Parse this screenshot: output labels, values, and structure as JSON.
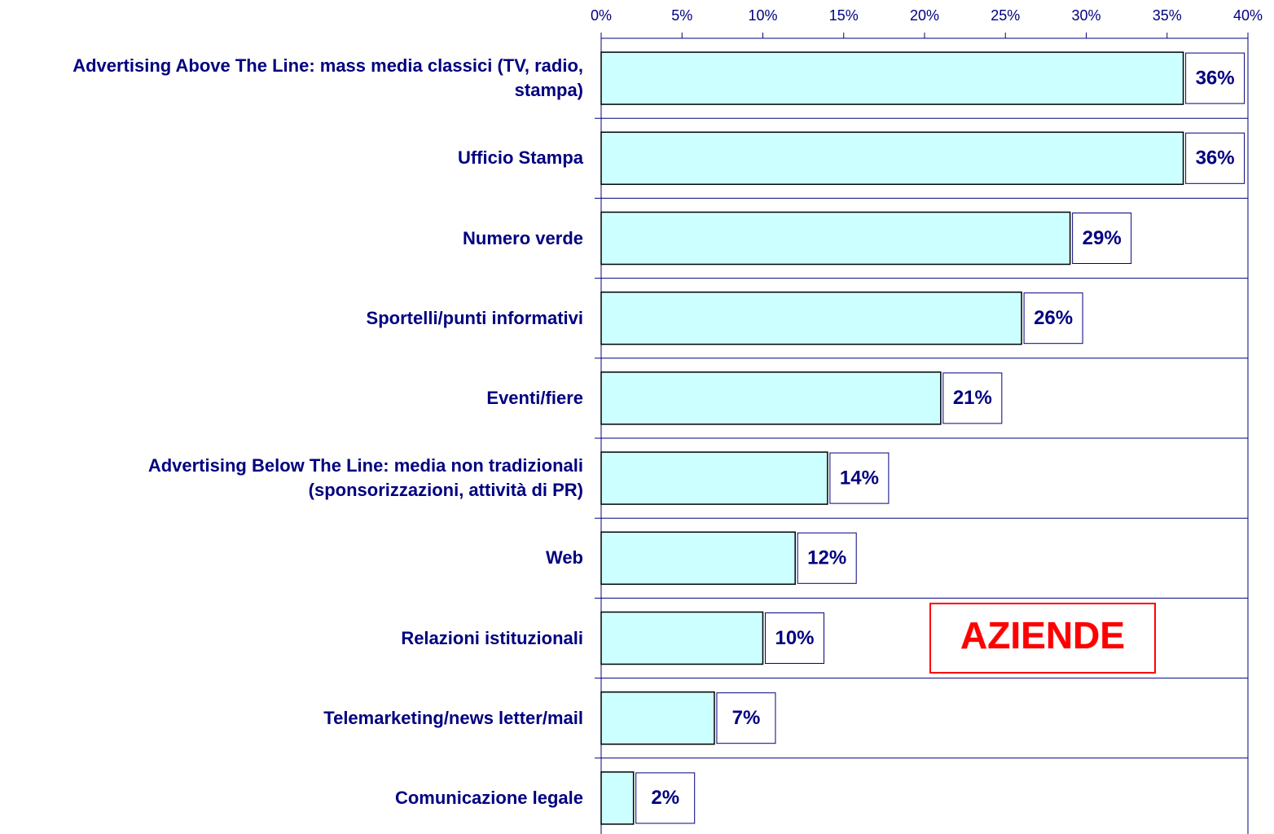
{
  "chart_data": {
    "type": "hbar",
    "categories": [
      "Advertising Above The Line: mass media classici (TV, radio, stampa)",
      "Ufficio Stampa",
      "Numero verde",
      "Sportelli/punti informativi",
      "Eventi/fiere",
      "Advertising Below The Line: media non tradizionali (sponsorizzazioni, attività di PR)",
      "Web",
      "Relazioni istituzionali",
      "Telemarketing/news letter/mail",
      "Comunicazione legale"
    ],
    "values": [
      36,
      36,
      29,
      26,
      21,
      14,
      12,
      10,
      7,
      2
    ],
    "value_labels": [
      "36%",
      "36%",
      "29%",
      "26%",
      "21%",
      "14%",
      "12%",
      "10%",
      "7%",
      "2%"
    ],
    "color": "#ccffff",
    "xlim": [
      0,
      40
    ],
    "xticks": [
      {
        "value": 0,
        "label": "0%"
      },
      {
        "value": 5,
        "label": "5%"
      },
      {
        "value": 10,
        "label": "10%"
      },
      {
        "value": 15,
        "label": "15%"
      },
      {
        "value": 20,
        "label": "20%"
      },
      {
        "value": 25,
        "label": "25%"
      },
      {
        "value": 30,
        "label": "30%"
      },
      {
        "value": 35,
        "label": "35%"
      },
      {
        "value": 40,
        "label": "40%"
      }
    ],
    "annotation": "AZIENDE"
  }
}
